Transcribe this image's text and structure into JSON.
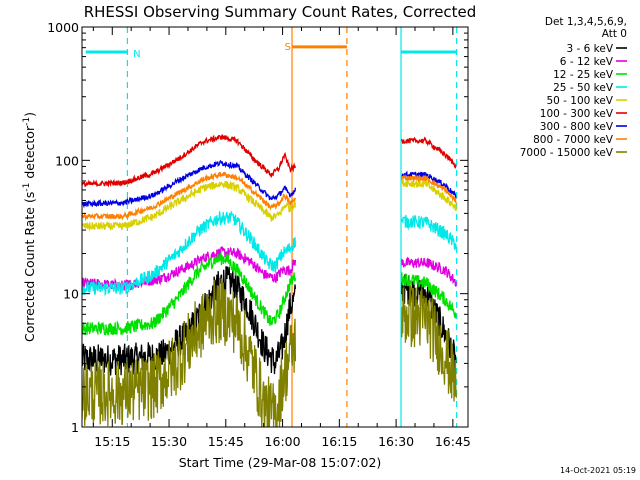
{
  "chart_data": {
    "type": "line",
    "title": "RHESSI Observing Summary Count Rates, Corrected",
    "xlabel": "Start Time (29-Mar-08 15:07:02)",
    "ylabel_main": "Corrected Count Rate (s",
    "ylabel_sup1": "-1",
    "ylabel_mid": " detector",
    "ylabel_sup2": "-1",
    "ylabel_end": ")",
    "footer": "14-Oct-2021 05:19",
    "y_scale": "log",
    "ylim": [
      1,
      1000
    ],
    "xlim_minutes": [
      907,
      1009
    ],
    "y_ticks": [
      {
        "value": 1,
        "label": "1"
      },
      {
        "value": 10,
        "label": "10"
      },
      {
        "value": 100,
        "label": "100"
      },
      {
        "value": 1000,
        "label": "1000"
      }
    ],
    "x_ticks": [
      {
        "value": 915,
        "label": "15:15"
      },
      {
        "value": 930,
        "label": "15:30"
      },
      {
        "value": 945,
        "label": "15:45"
      },
      {
        "value": 960,
        "label": "16:00"
      },
      {
        "value": 975,
        "label": "16:15"
      },
      {
        "value": 990,
        "label": "16:30"
      },
      {
        "value": 1005,
        "label": "16:45"
      }
    ],
    "legend": {
      "placement": "right",
      "header": [
        "Det 1,3,4,5,6,9,",
        "Att 0"
      ],
      "entries": [
        {
          "label": "3 - 6 keV",
          "color": "#000000"
        },
        {
          "label": "6 - 12 keV",
          "color": "#e000e0"
        },
        {
          "label": "12 - 25 keV",
          "color": "#00e000"
        },
        {
          "label": "25 - 50 keV",
          "color": "#00e8e8"
        },
        {
          "label": "50 - 100 keV",
          "color": "#d8d000"
        },
        {
          "label": "100 - 300 keV",
          "color": "#e00000"
        },
        {
          "label": "300 - 800 keV",
          "color": "#0000e0"
        },
        {
          "label": "800 - 7000 keV",
          "color": "#ff8000"
        },
        {
          "label": "7000 - 15000 keV",
          "color": "#808000"
        }
      ]
    },
    "segments": [
      {
        "start": 907,
        "end": 963.5
      },
      {
        "start": 991.5,
        "end": 1006
      }
    ],
    "series": [
      {
        "name": "3 - 6 keV",
        "color": "#000000",
        "noise": 0.12,
        "points": [
          [
            907,
            3.2
          ],
          [
            918,
            3.2
          ],
          [
            928,
            3.4
          ],
          [
            935,
            5
          ],
          [
            940,
            8.5
          ],
          [
            944,
            12.5
          ],
          [
            947,
            12
          ],
          [
            951,
            8
          ],
          [
            955,
            4
          ],
          [
            958,
            3
          ],
          [
            960,
            4
          ],
          [
            962,
            8
          ],
          [
            963.5,
            9.5
          ],
          [
            991.5,
            11
          ],
          [
            998,
            10
          ],
          [
            1003,
            5
          ],
          [
            1006,
            3
          ]
        ]
      },
      {
        "name": "6 - 12 keV",
        "color": "#e000e0",
        "noise": 0.04,
        "points": [
          [
            907,
            12
          ],
          [
            918,
            11.5
          ],
          [
            928,
            13
          ],
          [
            935,
            16
          ],
          [
            940,
            19
          ],
          [
            944,
            20.5
          ],
          [
            948,
            20
          ],
          [
            952,
            17
          ],
          [
            955,
            14
          ],
          [
            958,
            13
          ],
          [
            960,
            15
          ],
          [
            962,
            15
          ],
          [
            963.5,
            18
          ],
          [
            991.5,
            17
          ],
          [
            998,
            17
          ],
          [
            1003,
            15
          ],
          [
            1006,
            12
          ]
        ]
      },
      {
        "name": "12 - 25 keV",
        "color": "#00e000",
        "noise": 0.05,
        "points": [
          [
            907,
            5.5
          ],
          [
            918,
            5.5
          ],
          [
            926,
            6
          ],
          [
            932,
            9
          ],
          [
            937,
            14
          ],
          [
            942,
            18
          ],
          [
            945,
            18.5
          ],
          [
            949,
            14
          ],
          [
            953,
            9
          ],
          [
            957,
            6
          ],
          [
            959,
            7
          ],
          [
            961,
            10
          ],
          [
            962,
            12
          ],
          [
            963.5,
            14
          ],
          [
            991.5,
            13
          ],
          [
            998,
            12
          ],
          [
            1003,
            9
          ],
          [
            1006,
            7
          ]
        ]
      },
      {
        "name": "25 - 50 keV",
        "color": "#00e8e8",
        "noise": 0.05,
        "points": [
          [
            907,
            11
          ],
          [
            918,
            11
          ],
          [
            926,
            14
          ],
          [
            932,
            20
          ],
          [
            938,
            30
          ],
          [
            943,
            37
          ],
          [
            947,
            37
          ],
          [
            952,
            25
          ],
          [
            956,
            17
          ],
          [
            958,
            16
          ],
          [
            960,
            20
          ],
          [
            962,
            22
          ],
          [
            963.5,
            25
          ],
          [
            991.5,
            35
          ],
          [
            998,
            34
          ],
          [
            1003,
            28
          ],
          [
            1006,
            23
          ]
        ]
      },
      {
        "name": "50 - 100 keV",
        "color": "#d8d000",
        "noise": 0.03,
        "points": [
          [
            907,
            32
          ],
          [
            918,
            32
          ],
          [
            926,
            38
          ],
          [
            933,
            50
          ],
          [
            939,
            62
          ],
          [
            944,
            67
          ],
          [
            948,
            62
          ],
          [
            953,
            47
          ],
          [
            957,
            37
          ],
          [
            959,
            39
          ],
          [
            961,
            47
          ],
          [
            962,
            43
          ],
          [
            963.5,
            48
          ],
          [
            991.5,
            68
          ],
          [
            998,
            66
          ],
          [
            1003,
            52
          ],
          [
            1006,
            44
          ]
        ]
      },
      {
        "name": "100 - 300 keV",
        "color": "#e00000",
        "noise": 0.02,
        "points": [
          [
            907,
            66
          ],
          [
            918,
            68
          ],
          [
            926,
            80
          ],
          [
            933,
            105
          ],
          [
            939,
            138
          ],
          [
            944,
            150
          ],
          [
            948,
            140
          ],
          [
            953,
            98
          ],
          [
            957,
            78
          ],
          [
            959,
            87
          ],
          [
            960.5,
            110
          ],
          [
            962,
            86
          ],
          [
            963.5,
            90
          ],
          [
            964.5,
            110
          ],
          [
            991.5,
            140
          ],
          [
            998,
            140
          ],
          [
            1003,
            110
          ],
          [
            1006,
            90
          ]
        ]
      },
      {
        "name": "300 - 800 keV",
        "color": "#0000e0",
        "noise": 0.02,
        "points": [
          [
            907,
            47
          ],
          [
            918,
            48
          ],
          [
            926,
            55
          ],
          [
            933,
            72
          ],
          [
            939,
            88
          ],
          [
            944,
            96
          ],
          [
            948,
            90
          ],
          [
            953,
            66
          ],
          [
            957,
            51
          ],
          [
            959,
            55
          ],
          [
            960.5,
            62
          ],
          [
            962,
            55
          ],
          [
            963.5,
            60
          ],
          [
            991.5,
            78
          ],
          [
            998,
            78
          ],
          [
            1003,
            65
          ],
          [
            1006,
            53
          ]
        ]
      },
      {
        "name": "800 - 7000 keV",
        "color": "#ff8000",
        "noise": 0.02,
        "points": [
          [
            907,
            38
          ],
          [
            918,
            38
          ],
          [
            926,
            45
          ],
          [
            933,
            58
          ],
          [
            939,
            72
          ],
          [
            944,
            79
          ],
          [
            948,
            74
          ],
          [
            953,
            56
          ],
          [
            957,
            44
          ],
          [
            959,
            47
          ],
          [
            960.5,
            55
          ],
          [
            962,
            47
          ],
          [
            963.5,
            52
          ],
          [
            991.5,
            74
          ],
          [
            998,
            73
          ],
          [
            1003,
            60
          ],
          [
            1006,
            49
          ]
        ]
      },
      {
        "name": "7000 - 15000 keV",
        "color": "#808000",
        "noise": 0.25,
        "points": [
          [
            907,
            1.8
          ],
          [
            918,
            1.8
          ],
          [
            926,
            2
          ],
          [
            932,
            3
          ],
          [
            937,
            5
          ],
          [
            941,
            7
          ],
          [
            944,
            7.5
          ],
          [
            948,
            6
          ],
          [
            952,
            3
          ],
          [
            955,
            1.5
          ],
          [
            958,
            1.2
          ],
          [
            960,
            2.2
          ],
          [
            962,
            3.5
          ],
          [
            963.5,
            4.5
          ],
          [
            991.5,
            7
          ],
          [
            998,
            6.5
          ],
          [
            1003,
            3.5
          ],
          [
            1006,
            2
          ]
        ]
      }
    ],
    "markers": [
      {
        "type": "line",
        "x": 908,
        "ylevel": 650,
        "x2": 919,
        "color": "#00e8e8",
        "thick": true
      },
      {
        "type": "dashed",
        "x": 919,
        "color": "#00e8e8"
      },
      {
        "type": "label",
        "x": 920.5,
        "ylevel": 640,
        "text": "N",
        "color": "#00e8e8"
      },
      {
        "type": "solid",
        "x": 962.5,
        "color": "#ff8000"
      },
      {
        "type": "label",
        "x": 960.5,
        "ylevel": 720,
        "text": "S",
        "color": "#ff8000"
      },
      {
        "type": "line",
        "x": 962.5,
        "ylevel": 710,
        "x2": 977,
        "color": "#ff8000",
        "thick": true
      },
      {
        "type": "dashed",
        "x": 977,
        "color": "#ff8000"
      },
      {
        "type": "solid",
        "x": 991.3,
        "color": "#00e8e8"
      },
      {
        "type": "line",
        "x": 991.3,
        "ylevel": 650,
        "x2": 1006,
        "color": "#00e8e8",
        "thick": true
      },
      {
        "type": "dashed",
        "x": 1006,
        "color": "#00e8e8"
      }
    ]
  }
}
